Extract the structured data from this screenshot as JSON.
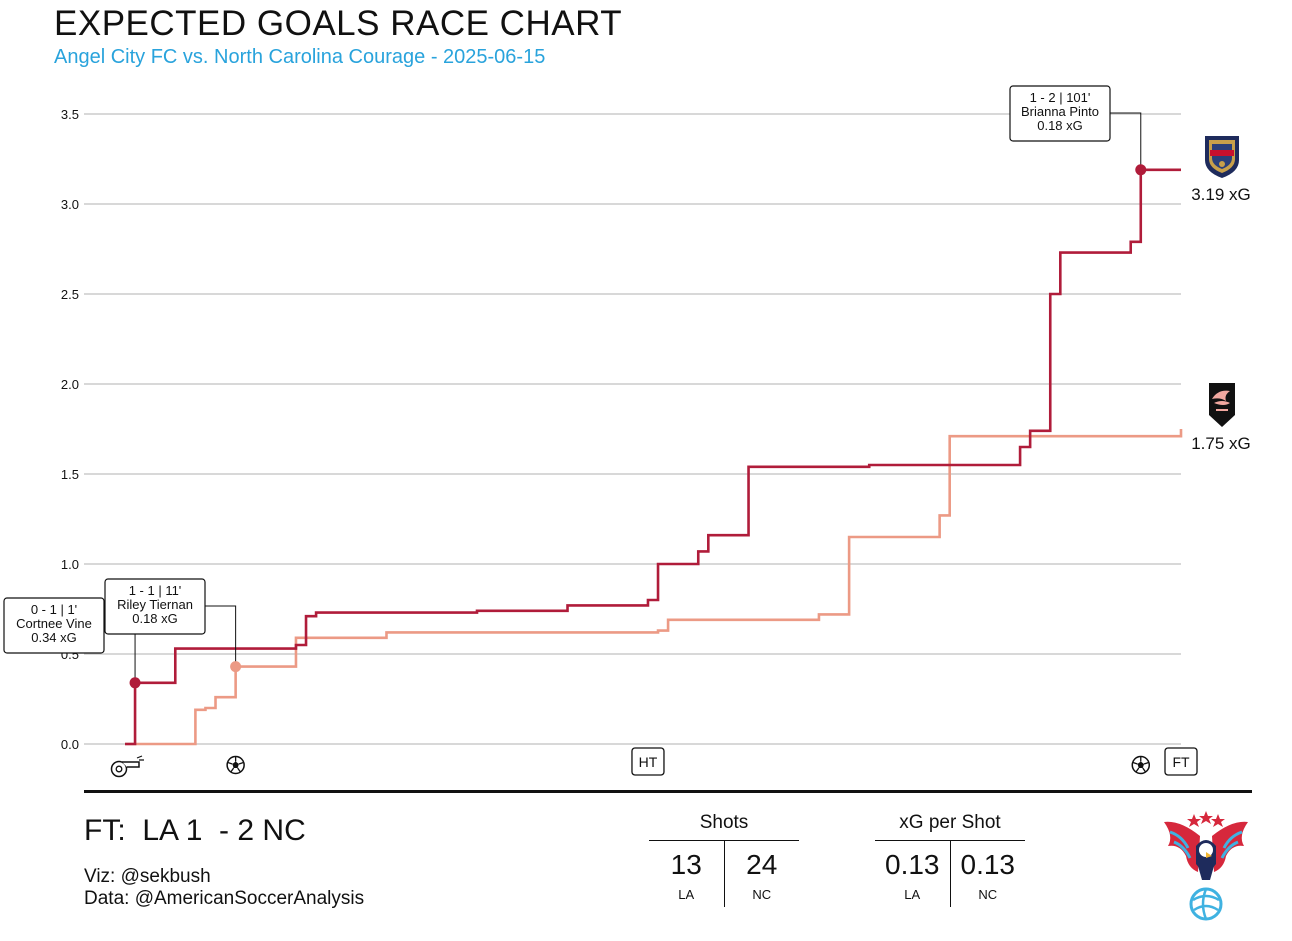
{
  "header": {
    "title": "EXPECTED GOALS RACE CHART",
    "subtitle": "Angel City FC vs. North Carolina Courage - 2025-06-15"
  },
  "colors": {
    "nc": "#b01c3a",
    "la": "#ec9a85",
    "subtitle": "#29a3dc",
    "grid": "#cccccc",
    "brand_red": "#d6283c",
    "brand_blue": "#3fb2e1",
    "brand_navy": "#1e2b5c"
  },
  "chart_data": {
    "type": "line",
    "step": true,
    "xlabel": "",
    "ylabel": "",
    "xlim": [
      0,
      105
    ],
    "ylim": [
      0,
      3.5
    ],
    "y_ticks": [
      "0.0",
      "0.5",
      "1.0",
      "1.5",
      "2.0",
      "2.5",
      "3.0",
      "3.5"
    ],
    "grid": true,
    "series": [
      {
        "key": "nc",
        "points": [
          [
            0,
            0
          ],
          [
            1,
            0.34
          ],
          [
            5,
            0.53
          ],
          [
            17,
            0.55
          ],
          [
            18,
            0.71
          ],
          [
            19,
            0.73
          ],
          [
            35,
            0.74
          ],
          [
            44,
            0.77
          ],
          [
            52,
            0.8
          ],
          [
            53,
            1.0
          ],
          [
            56,
            1.0
          ],
          [
            57,
            1.07
          ],
          [
            58,
            1.16
          ],
          [
            61,
            1.16
          ],
          [
            62,
            1.54
          ],
          [
            73,
            1.54
          ],
          [
            74,
            1.55
          ],
          [
            88,
            1.55
          ],
          [
            89,
            1.65
          ],
          [
            90,
            1.74
          ],
          [
            91,
            1.74
          ],
          [
            92,
            2.5
          ],
          [
            93,
            2.73
          ],
          [
            99,
            2.73
          ],
          [
            100,
            2.79
          ],
          [
            101,
            3.19
          ],
          [
            105,
            3.19
          ]
        ],
        "end_label": "3.19 xG"
      },
      {
        "key": "la",
        "points": [
          [
            0,
            0
          ],
          [
            7,
            0.19
          ],
          [
            8,
            0.2
          ],
          [
            9,
            0.26
          ],
          [
            11,
            0.43
          ],
          [
            16,
            0.43
          ],
          [
            17,
            0.59
          ],
          [
            26,
            0.62
          ],
          [
            53,
            0.63
          ],
          [
            54,
            0.69
          ],
          [
            68,
            0.69
          ],
          [
            69,
            0.72
          ],
          [
            72,
            1.15
          ],
          [
            80,
            1.15
          ],
          [
            81,
            1.27
          ],
          [
            82,
            1.71
          ],
          [
            105,
            1.75
          ]
        ],
        "end_label": "1.75 xG"
      }
    ],
    "annotations": [
      {
        "team": "nc",
        "x": 1,
        "y": 0.34,
        "line1": "0 - 1  |  1'",
        "line2": "Cortnee Vine",
        "line3": "0.34 xG"
      },
      {
        "team": "la",
        "x": 11,
        "y": 0.43,
        "line1": "1 - 1  |  11'",
        "line2": "Riley Tiernan",
        "line3": "0.18 xG"
      },
      {
        "team": "nc",
        "x": 101,
        "y": 3.19,
        "line1": "1 - 2  |  101'",
        "line2": "Brianna Pinto",
        "line3": "0.18 xG"
      }
    ],
    "markers": [
      {
        "x": 0,
        "icon": "whistle-icon"
      },
      {
        "x": 11,
        "icon": "soccer-ball-icon"
      },
      {
        "x": 52,
        "label": "HT"
      },
      {
        "x": 101,
        "icon": "soccer-ball-icon"
      },
      {
        "x": 105,
        "label": "FT"
      }
    ]
  },
  "footer": {
    "score": "FT:  LA 1  - 2 NC",
    "viz_credit": "Viz: @sekbush",
    "data_credit": "Data: @AmericanSoccerAnalysis",
    "shots": {
      "title": "Shots",
      "la_value": "13",
      "nc_value": "24",
      "la_label": "LA",
      "nc_label": "NC"
    },
    "xg_per_shot": {
      "title": "xG per Shot",
      "la_value": "0.13",
      "nc_value": "0.13",
      "la_label": "LA",
      "nc_label": "NC"
    }
  },
  "logos": {
    "nc_logo": "courage-crest-icon",
    "la_logo": "angel-city-crest-icon",
    "brand_logo": "eagle-soccer-ball-icon"
  }
}
